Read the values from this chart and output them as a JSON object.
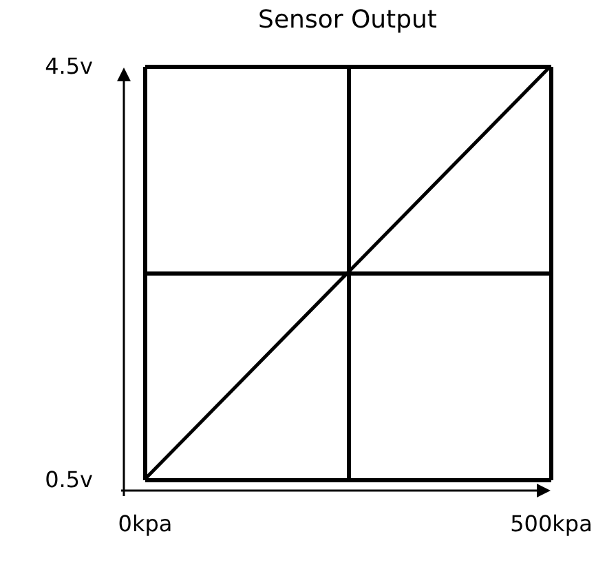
{
  "chart_data": {
    "type": "line",
    "title": "Sensor Output",
    "x": [
      0,
      500
    ],
    "series": [
      {
        "color": "#000000",
        "values": [
          0.5,
          4.5
        ]
      }
    ],
    "xlim": [
      0,
      500
    ],
    "xticks": [
      {
        "value": 0,
        "label": "0kpa"
      },
      {
        "value": 250,
        "label": null
      },
      {
        "value": 500,
        "label": "500kpa"
      }
    ],
    "ylim": [
      0.5,
      4.5
    ],
    "yticks": [
      {
        "value": 0.5,
        "label": "0.5v"
      },
      {
        "value": 2.5,
        "label": null
      },
      {
        "value": 4.5,
        "label": "4.5v"
      }
    ],
    "grid": true,
    "marker": "none",
    "line_style": "solid"
  }
}
